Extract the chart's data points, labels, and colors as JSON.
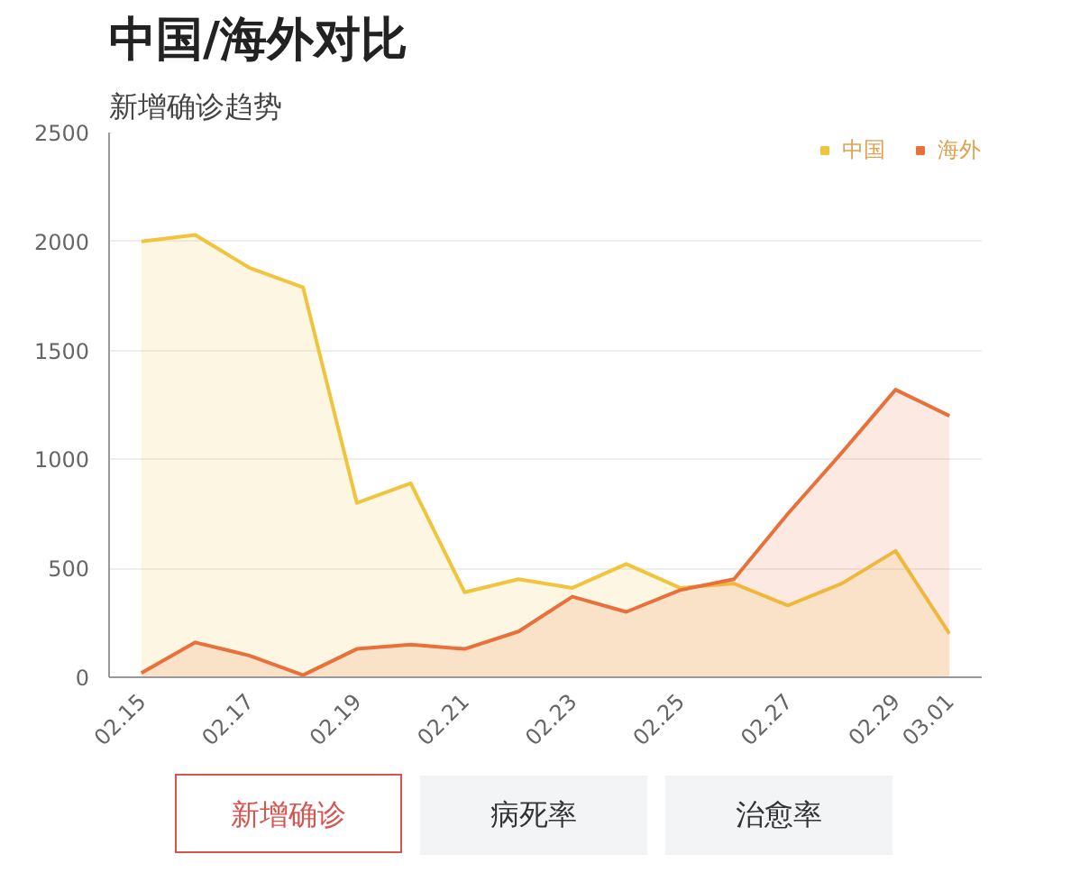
{
  "chart_data": {
    "type": "area",
    "title": "中国/海外对比",
    "subtitle": "新增确诊趋势",
    "categories": [
      "02.15",
      null,
      "02.17",
      null,
      "02.19",
      null,
      "02.21",
      null,
      "02.23",
      null,
      "02.25",
      null,
      "02.27",
      null,
      "02.29",
      "03.01"
    ],
    "series": [
      {
        "name": "中国",
        "color": "#f0c43c",
        "values": [
          2000,
          2030,
          1880,
          1790,
          800,
          890,
          390,
          450,
          410,
          520,
          410,
          430,
          330,
          430,
          580,
          200
        ]
      },
      {
        "name": "海外",
        "color": "#e8703a",
        "values": [
          20,
          160,
          100,
          10,
          130,
          150,
          130,
          210,
          370,
          300,
          400,
          450,
          750,
          1030,
          1320,
          1200
        ]
      }
    ],
    "ylim": [
      0,
      2500
    ],
    "yticks": [
      0,
      500,
      1000,
      1500,
      2000,
      2500
    ],
    "grid": "y",
    "legend": "top right",
    "annotations": [
      "新增确诊",
      "病死率",
      "治愈率"
    ]
  }
}
